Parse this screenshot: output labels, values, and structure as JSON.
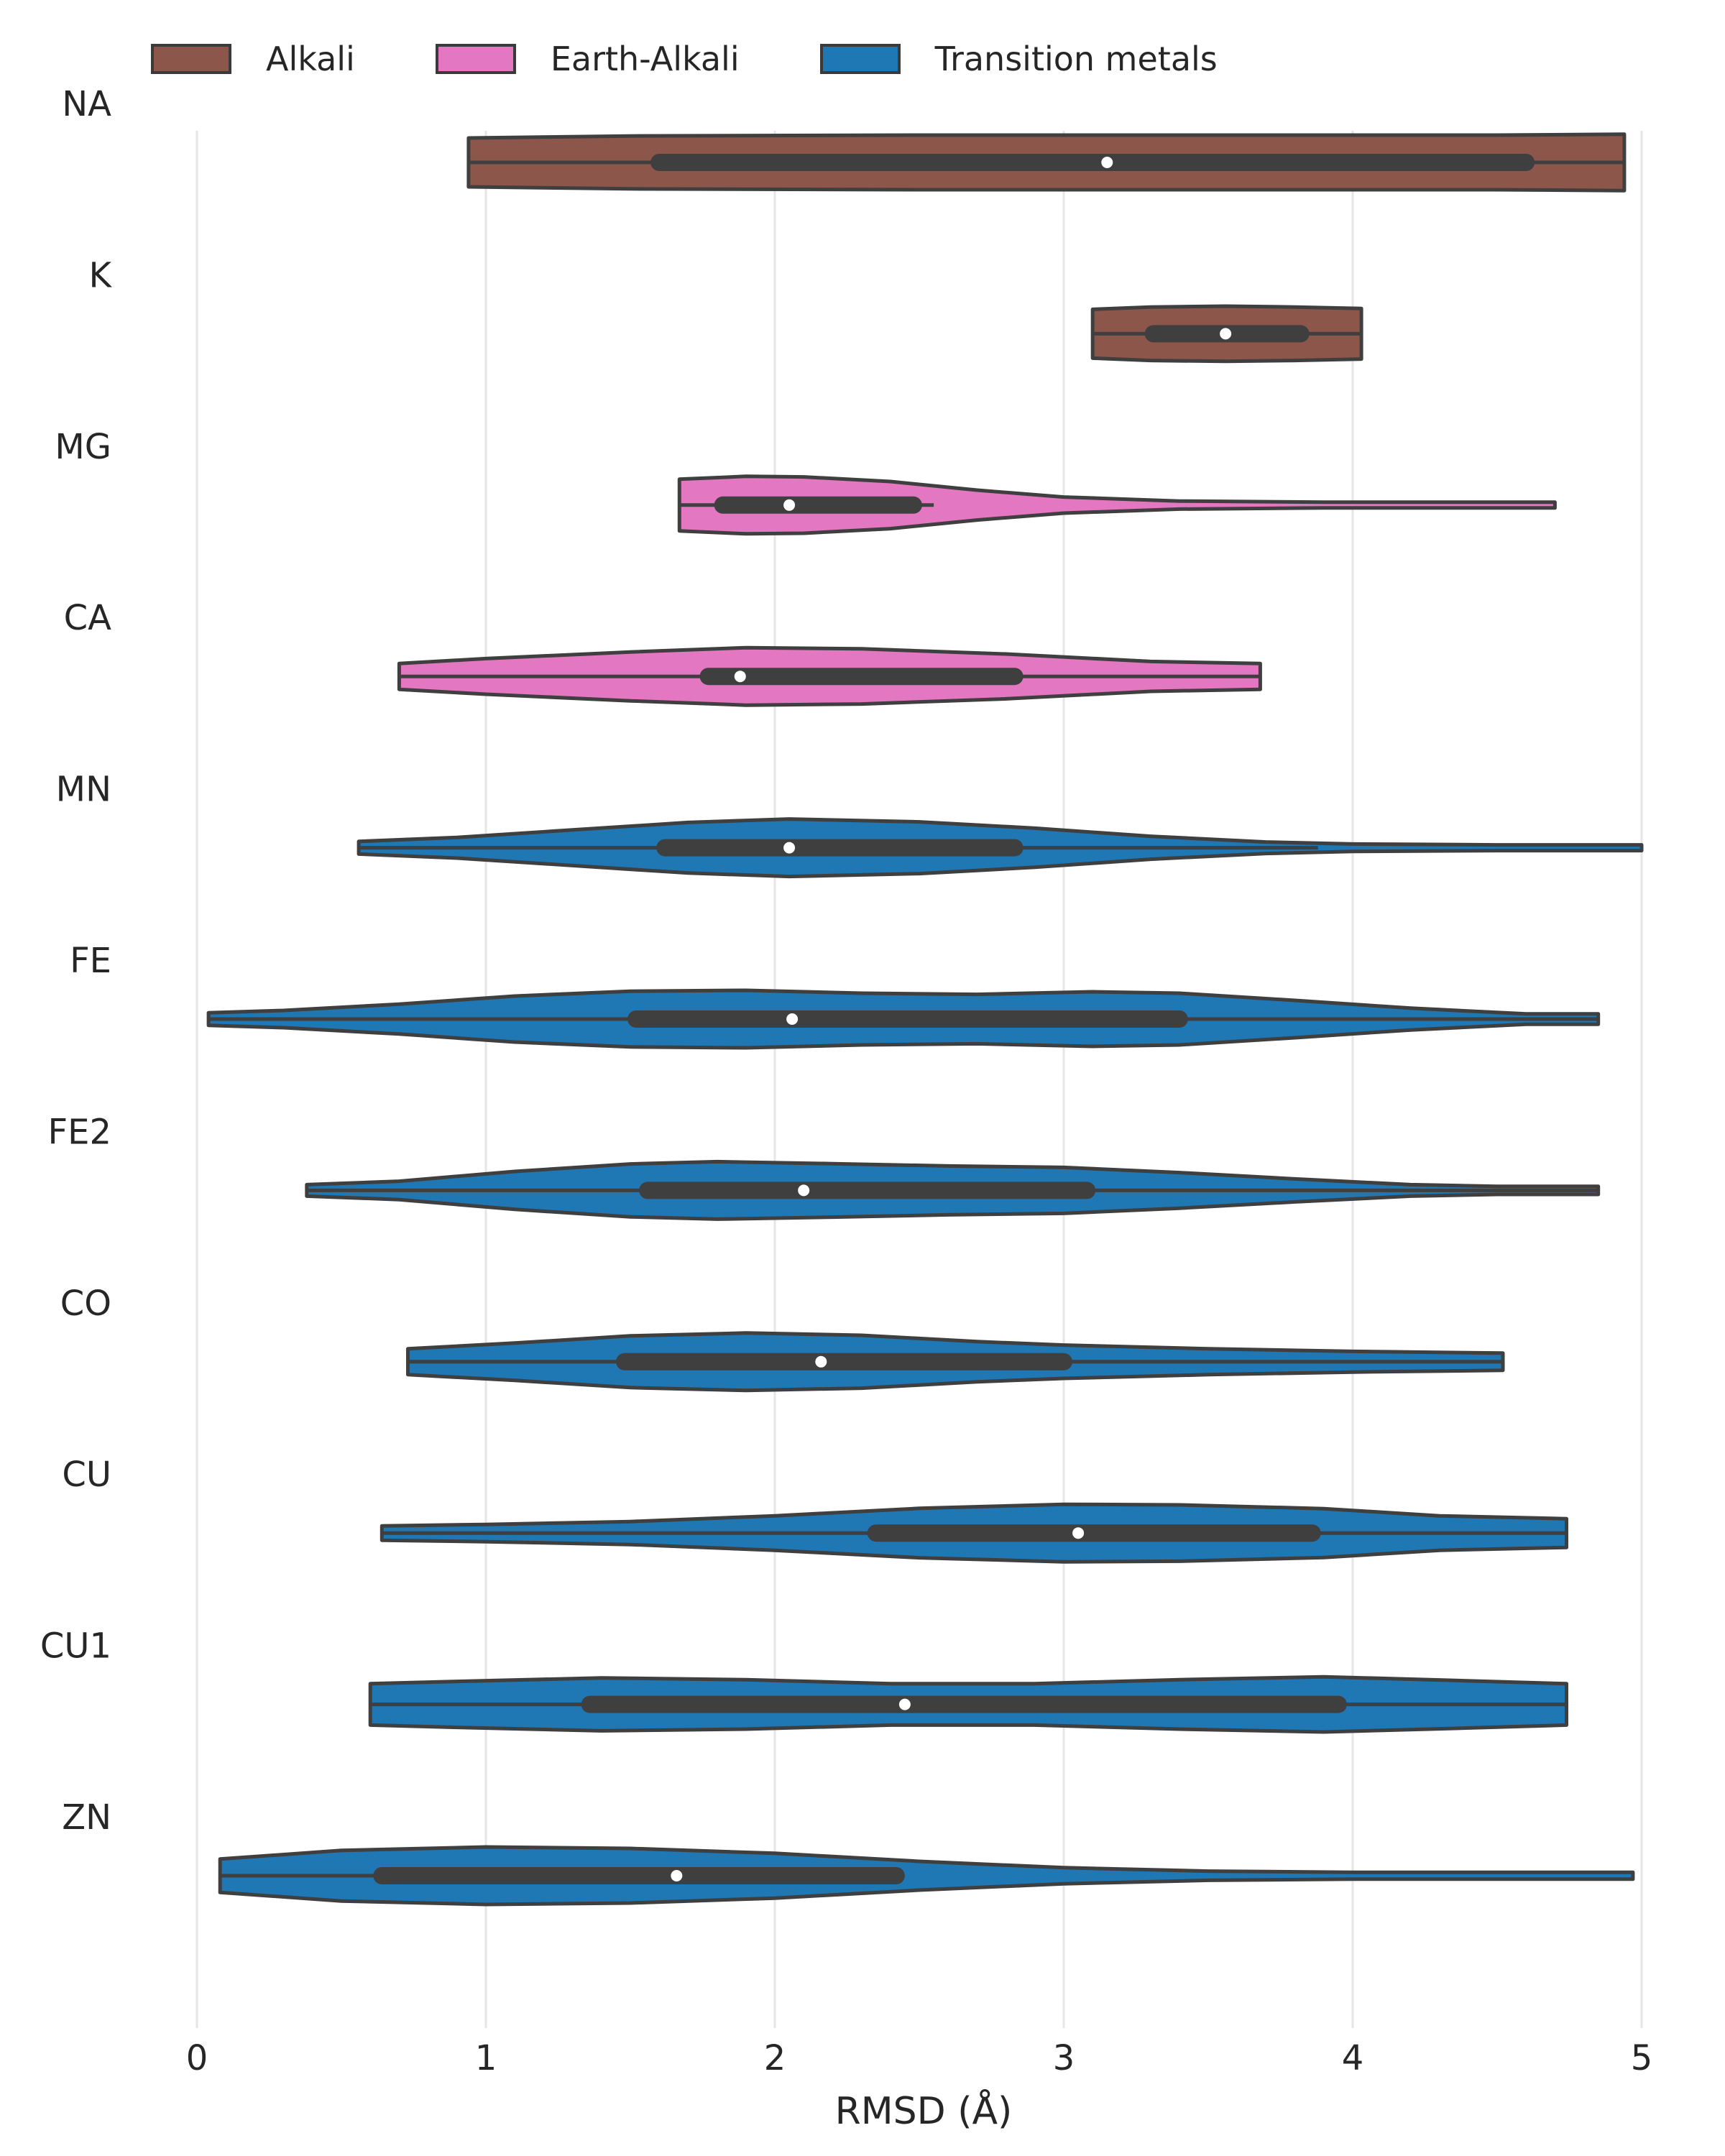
{
  "chart_data": {
    "type": "violin",
    "orientation": "horizontal",
    "xlabel": "RMSD (Å)",
    "ylabel": "",
    "xlim": [
      0,
      5
    ],
    "xticks": [
      "0",
      "1",
      "2",
      "3",
      "4",
      "5"
    ],
    "grid": "vertical",
    "legend_position": "top",
    "legend": [
      {
        "label": "Alkali",
        "color": "#8c564b"
      },
      {
        "label": "Earth-Alkali",
        "color": "#e377c2"
      },
      {
        "label": "Transition metals",
        "color": "#1f77b4"
      }
    ],
    "categories": [
      "NA",
      "K",
      "MG",
      "CA",
      "MN",
      "FE",
      "FE2",
      "CO",
      "CU",
      "CU1",
      "ZN"
    ],
    "groups": [
      0,
      0,
      1,
      1,
      2,
      2,
      2,
      2,
      2,
      2,
      2
    ],
    "violins": [
      {
        "label": "NA",
        "group": "Alkali",
        "min": 0.94,
        "max": 4.94,
        "q1": 1.6,
        "median": 3.15,
        "q3": 4.6,
        "whisker_low": 0.94,
        "whisker_high": 4.94,
        "density": [
          [
            0.94,
            0.85
          ],
          [
            1.5,
            0.92
          ],
          [
            2.5,
            0.95
          ],
          [
            3.5,
            0.95
          ],
          [
            4.5,
            0.95
          ],
          [
            4.94,
            0.98
          ]
        ]
      },
      {
        "label": "K",
        "group": "Alkali",
        "min": 3.1,
        "max": 4.03,
        "q1": 3.31,
        "median": 3.56,
        "q3": 3.82,
        "whisker_low": 3.1,
        "whisker_high": 4.03,
        "density": [
          [
            3.1,
            0.85
          ],
          [
            3.3,
            0.93
          ],
          [
            3.56,
            0.96
          ],
          [
            3.8,
            0.93
          ],
          [
            4.03,
            0.88
          ]
        ]
      },
      {
        "label": "MG",
        "group": "Earth-Alkali",
        "min": 1.67,
        "max": 4.7,
        "q1": 1.82,
        "median": 2.05,
        "q3": 2.48,
        "whisker_low": 1.67,
        "whisker_high": 2.55,
        "density": [
          [
            1.67,
            0.9
          ],
          [
            1.9,
            1.0
          ],
          [
            2.1,
            0.98
          ],
          [
            2.4,
            0.82
          ],
          [
            2.7,
            0.52
          ],
          [
            3.0,
            0.28
          ],
          [
            3.4,
            0.14
          ],
          [
            3.9,
            0.1
          ],
          [
            4.3,
            0.1
          ],
          [
            4.7,
            0.1
          ]
        ]
      },
      {
        "label": "CA",
        "group": "Earth-Alkali",
        "min": 0.7,
        "max": 3.68,
        "q1": 1.77,
        "median": 1.88,
        "q3": 2.83,
        "whisker_low": 0.7,
        "whisker_high": 3.68,
        "density": [
          [
            0.7,
            0.45
          ],
          [
            1.0,
            0.62
          ],
          [
            1.5,
            0.85
          ],
          [
            1.9,
            1.0
          ],
          [
            2.3,
            0.96
          ],
          [
            2.8,
            0.78
          ],
          [
            3.3,
            0.52
          ],
          [
            3.68,
            0.45
          ]
        ]
      },
      {
        "label": "MN",
        "group": "Transition metals",
        "min": 0.56,
        "max": 5.0,
        "q1": 1.62,
        "median": 2.05,
        "q3": 2.83,
        "whisker_low": 0.56,
        "whisker_high": 3.88,
        "density": [
          [
            0.56,
            0.22
          ],
          [
            0.9,
            0.36
          ],
          [
            1.3,
            0.62
          ],
          [
            1.7,
            0.88
          ],
          [
            2.05,
            1.0
          ],
          [
            2.5,
            0.9
          ],
          [
            2.9,
            0.68
          ],
          [
            3.3,
            0.4
          ],
          [
            3.7,
            0.2
          ],
          [
            4.0,
            0.13
          ],
          [
            4.5,
            0.1
          ],
          [
            5.0,
            0.1
          ]
        ]
      },
      {
        "label": "FE",
        "group": "Transition metals",
        "min": 0.04,
        "max": 4.85,
        "q1": 1.52,
        "median": 2.06,
        "q3": 3.4,
        "whisker_low": 0.04,
        "whisker_high": 4.85,
        "density": [
          [
            0.04,
            0.22
          ],
          [
            0.3,
            0.3
          ],
          [
            0.7,
            0.52
          ],
          [
            1.1,
            0.8
          ],
          [
            1.5,
            0.97
          ],
          [
            1.9,
            1.0
          ],
          [
            2.3,
            0.9
          ],
          [
            2.7,
            0.86
          ],
          [
            3.1,
            0.95
          ],
          [
            3.4,
            0.9
          ],
          [
            3.8,
            0.65
          ],
          [
            4.2,
            0.38
          ],
          [
            4.6,
            0.18
          ],
          [
            4.85,
            0.18
          ]
        ]
      },
      {
        "label": "FE2",
        "group": "Transition metals",
        "min": 0.38,
        "max": 4.85,
        "q1": 1.56,
        "median": 2.1,
        "q3": 3.08,
        "whisker_low": 0.38,
        "whisker_high": 4.85,
        "density": [
          [
            0.38,
            0.2
          ],
          [
            0.7,
            0.32
          ],
          [
            1.1,
            0.66
          ],
          [
            1.5,
            0.92
          ],
          [
            1.8,
            1.0
          ],
          [
            2.2,
            0.93
          ],
          [
            2.6,
            0.85
          ],
          [
            3.0,
            0.8
          ],
          [
            3.4,
            0.62
          ],
          [
            3.8,
            0.4
          ],
          [
            4.2,
            0.2
          ],
          [
            4.5,
            0.14
          ],
          [
            4.85,
            0.14
          ]
        ]
      },
      {
        "label": "CO",
        "group": "Transition metals",
        "min": 0.73,
        "max": 4.52,
        "q1": 1.48,
        "median": 2.16,
        "q3": 3.0,
        "whisker_low": 0.73,
        "whisker_high": 4.52,
        "density": [
          [
            0.73,
            0.45
          ],
          [
            1.1,
            0.65
          ],
          [
            1.5,
            0.9
          ],
          [
            1.9,
            1.0
          ],
          [
            2.3,
            0.92
          ],
          [
            2.7,
            0.7
          ],
          [
            3.0,
            0.58
          ],
          [
            3.5,
            0.45
          ],
          [
            4.0,
            0.36
          ],
          [
            4.52,
            0.3
          ]
        ]
      },
      {
        "label": "CU",
        "group": "Transition metals",
        "min": 0.64,
        "max": 4.74,
        "q1": 2.35,
        "median": 3.05,
        "q3": 3.86,
        "whisker_low": 0.64,
        "whisker_high": 4.74,
        "density": [
          [
            0.64,
            0.25
          ],
          [
            1.0,
            0.3
          ],
          [
            1.5,
            0.4
          ],
          [
            2.0,
            0.6
          ],
          [
            2.5,
            0.86
          ],
          [
            3.0,
            1.0
          ],
          [
            3.4,
            0.98
          ],
          [
            3.9,
            0.85
          ],
          [
            4.3,
            0.6
          ],
          [
            4.74,
            0.5
          ]
        ]
      },
      {
        "label": "CU1",
        "group": "Transition metals",
        "min": 0.6,
        "max": 4.74,
        "q1": 1.36,
        "median": 2.45,
        "q3": 3.95,
        "whisker_low": 0.6,
        "whisker_high": 4.74,
        "density": [
          [
            0.6,
            0.72
          ],
          [
            0.9,
            0.8
          ],
          [
            1.4,
            0.92
          ],
          [
            1.9,
            0.86
          ],
          [
            2.4,
            0.72
          ],
          [
            2.9,
            0.72
          ],
          [
            3.4,
            0.86
          ],
          [
            3.9,
            0.96
          ],
          [
            4.3,
            0.85
          ],
          [
            4.74,
            0.72
          ]
        ]
      },
      {
        "label": "ZN",
        "group": "Transition metals",
        "min": 0.08,
        "max": 4.97,
        "q1": 0.64,
        "median": 1.66,
        "q3": 2.42,
        "whisker_low": 0.08,
        "whisker_high": 2.42,
        "density": [
          [
            0.08,
            0.58
          ],
          [
            0.5,
            0.88
          ],
          [
            1.0,
            1.0
          ],
          [
            1.5,
            0.95
          ],
          [
            2.0,
            0.78
          ],
          [
            2.5,
            0.5
          ],
          [
            3.0,
            0.28
          ],
          [
            3.5,
            0.16
          ],
          [
            4.0,
            0.12
          ],
          [
            4.5,
            0.12
          ],
          [
            4.97,
            0.12
          ]
        ]
      }
    ]
  }
}
